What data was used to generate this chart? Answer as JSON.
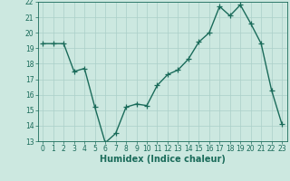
{
  "x": [
    0,
    1,
    2,
    3,
    4,
    5,
    6,
    7,
    8,
    9,
    10,
    11,
    12,
    13,
    14,
    15,
    16,
    17,
    18,
    19,
    20,
    21,
    22,
    23
  ],
  "y": [
    19.3,
    19.3,
    19.3,
    17.5,
    17.7,
    15.2,
    12.9,
    13.5,
    15.2,
    15.4,
    15.3,
    16.6,
    17.3,
    17.6,
    18.3,
    19.4,
    20.0,
    21.7,
    21.1,
    21.8,
    20.6,
    19.3,
    16.3,
    14.1
  ],
  "xlabel": "Humidex (Indice chaleur)",
  "ylim": [
    13,
    22
  ],
  "xlim": [
    -0.5,
    23.5
  ],
  "yticks": [
    13,
    14,
    15,
    16,
    17,
    18,
    19,
    20,
    21,
    22
  ],
  "xticks": [
    0,
    1,
    2,
    3,
    4,
    5,
    6,
    7,
    8,
    9,
    10,
    11,
    12,
    13,
    14,
    15,
    16,
    17,
    18,
    19,
    20,
    21,
    22,
    23
  ],
  "line_color": "#1a6b5a",
  "marker": "+",
  "bg_color": "#cce8e0",
  "grid_color": "#aacfc8",
  "tick_color": "#1a6b5a",
  "label_color": "#1a6b5a",
  "xlabel_fontsize": 7,
  "tick_fontsize": 5.5,
  "linewidth": 1.0,
  "markersize": 4,
  "markeredgewidth": 0.9
}
